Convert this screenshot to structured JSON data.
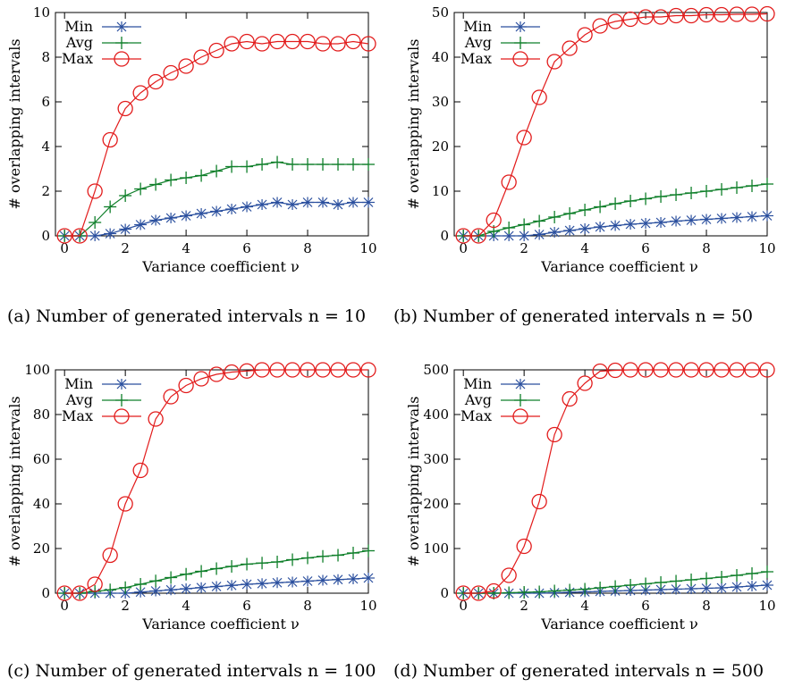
{
  "colors": {
    "min": "#2a4f9e",
    "avg": "#0f7f2a",
    "max": "#e21b1b",
    "axis": "#000000"
  },
  "markers": {
    "min": "star-marker",
    "avg": "plus-marker",
    "max": "circle-marker"
  },
  "x_values": [
    0,
    0.5,
    1,
    1.5,
    2,
    2.5,
    3,
    3.5,
    4,
    4.5,
    5,
    5.5,
    6,
    6.5,
    7,
    7.5,
    8,
    8.5,
    9,
    9.5,
    10
  ],
  "chart_data": [
    {
      "type": "line",
      "caption": "(a) Number of generated intervals n = 10",
      "xlabel": "Variance coefficient ν",
      "ylabel": "# overlapping intervals",
      "xlim": [
        -0.3,
        10
      ],
      "ylim": [
        0,
        10
      ],
      "xticks": [
        0,
        2,
        4,
        6,
        8,
        10
      ],
      "yticks": [
        0,
        2,
        4,
        6,
        8,
        10
      ],
      "legend": "top-left",
      "series": [
        {
          "name": "Min",
          "values": [
            0,
            0,
            0,
            0.1,
            0.3,
            0.5,
            0.7,
            0.8,
            0.9,
            1.0,
            1.1,
            1.2,
            1.3,
            1.4,
            1.5,
            1.4,
            1.5,
            1.5,
            1.4,
            1.5,
            1.5
          ]
        },
        {
          "name": "Avg",
          "values": [
            0,
            0,
            0.6,
            1.3,
            1.8,
            2.1,
            2.3,
            2.5,
            2.6,
            2.7,
            2.9,
            3.1,
            3.1,
            3.2,
            3.3,
            3.2,
            3.2,
            3.2,
            3.2,
            3.2,
            3.2
          ]
        },
        {
          "name": "Max",
          "values": [
            0,
            0,
            2.0,
            4.3,
            5.7,
            6.4,
            6.9,
            7.3,
            7.6,
            8.0,
            8.3,
            8.6,
            8.7,
            8.6,
            8.7,
            8.7,
            8.7,
            8.6,
            8.6,
            8.7,
            8.6
          ]
        }
      ]
    },
    {
      "type": "line",
      "caption": "(b) Number of generated intervals n = 50",
      "xlabel": "Variance coefficient ν",
      "ylabel": "# overlapping intervals",
      "xlim": [
        -0.3,
        10
      ],
      "ylim": [
        0,
        50
      ],
      "xticks": [
        0,
        2,
        4,
        6,
        8,
        10
      ],
      "yticks": [
        0,
        10,
        20,
        30,
        40,
        50
      ],
      "legend": "top-left",
      "series": [
        {
          "name": "Min",
          "values": [
            0,
            0,
            0,
            0,
            0,
            0.3,
            0.8,
            1.2,
            1.6,
            2.0,
            2.3,
            2.6,
            2.8,
            3.0,
            3.3,
            3.5,
            3.7,
            3.9,
            4.1,
            4.3,
            4.5
          ]
        },
        {
          "name": "Avg",
          "values": [
            0,
            0,
            1.0,
            1.8,
            2.5,
            3.3,
            4.2,
            5.0,
            5.8,
            6.5,
            7.2,
            7.8,
            8.3,
            8.8,
            9.2,
            9.6,
            10.0,
            10.4,
            10.8,
            11.2,
            11.6
          ]
        },
        {
          "name": "Max",
          "values": [
            0,
            0,
            3.5,
            12,
            22,
            31,
            39,
            42,
            45,
            47,
            48,
            48.5,
            49,
            49,
            49.3,
            49.3,
            49.5,
            49.5,
            49.6,
            49.6,
            49.7
          ]
        }
      ]
    },
    {
      "type": "line",
      "caption": "(c) Number of generated intervals n = 100",
      "xlabel": "Variance coefficient ν",
      "ylabel": "# overlapping intervals",
      "xlim": [
        -0.3,
        10
      ],
      "ylim": [
        0,
        100
      ],
      "xticks": [
        0,
        2,
        4,
        6,
        8,
        10
      ],
      "yticks": [
        0,
        20,
        40,
        60,
        80,
        100
      ],
      "legend": "top-left",
      "series": [
        {
          "name": "Min",
          "values": [
            0,
            0,
            0,
            0,
            0,
            0.5,
            1.0,
            1.5,
            2.0,
            2.5,
            3.0,
            3.5,
            4.0,
            4.3,
            4.7,
            5.0,
            5.4,
            5.8,
            6.1,
            6.4,
            6.8
          ]
        },
        {
          "name": "Avg",
          "values": [
            0,
            0,
            0.8,
            1.5,
            2.5,
            4.0,
            5.5,
            7.0,
            8.5,
            9.8,
            11,
            12,
            13,
            13.5,
            14,
            15,
            15.8,
            16.5,
            17,
            18,
            19
          ]
        },
        {
          "name": "Max",
          "values": [
            0,
            0,
            4,
            17,
            40,
            55,
            78,
            88,
            93,
            96,
            98,
            99,
            99.5,
            100,
            100,
            100,
            100,
            100,
            100,
            100,
            100
          ]
        }
      ]
    },
    {
      "type": "line",
      "caption": "(d) Number of generated intervals n = 500",
      "xlabel": "Variance coefficient ν",
      "ylabel": "# overlapping intervals",
      "xlim": [
        -0.3,
        10
      ],
      "ylim": [
        0,
        500
      ],
      "xticks": [
        0,
        2,
        4,
        6,
        8,
        10
      ],
      "yticks": [
        0,
        100,
        200,
        300,
        400,
        500
      ],
      "legend": "top-left",
      "series": [
        {
          "name": "Min",
          "values": [
            0,
            0,
            0,
            0,
            0,
            0,
            1,
            2,
            3,
            4,
            5,
            6,
            7,
            8,
            9,
            10,
            11,
            12,
            14,
            16,
            18
          ]
        },
        {
          "name": "Avg",
          "values": [
            0,
            0,
            0,
            1,
            2,
            3,
            5,
            7,
            9,
            12,
            15,
            18,
            21,
            24,
            27,
            30,
            33,
            36,
            40,
            44,
            48
          ]
        },
        {
          "name": "Max",
          "values": [
            0,
            0,
            5,
            40,
            105,
            205,
            355,
            435,
            470,
            497,
            499,
            500,
            500,
            500,
            500,
            500,
            500,
            500,
            500,
            500,
            500
          ]
        }
      ]
    }
  ]
}
